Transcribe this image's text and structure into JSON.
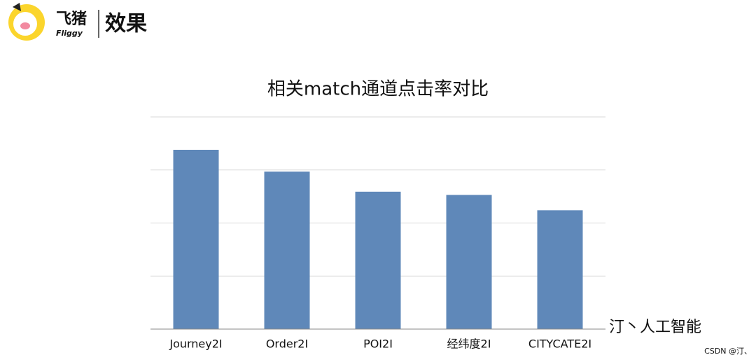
{
  "header": {
    "logo_text": "飞猪",
    "logo_subtext": "Fliggy",
    "title": "效果"
  },
  "chart_data": {
    "type": "bar",
    "title": "相关match通道点击率对比",
    "categories": [
      "Journey2I",
      "Order2I",
      "POI2I",
      "经纬度2I",
      "CITYCATE2I"
    ],
    "values": [
      3.38,
      2.97,
      2.59,
      2.53,
      2.24
    ],
    "color": "#5f88b9",
    "ylim": [
      0,
      4
    ],
    "yticks": [
      0,
      1,
      2,
      3,
      4
    ],
    "grid": true
  },
  "watermark": {
    "text": "汀丶人工智能",
    "credit": "CSDN @汀、"
  }
}
